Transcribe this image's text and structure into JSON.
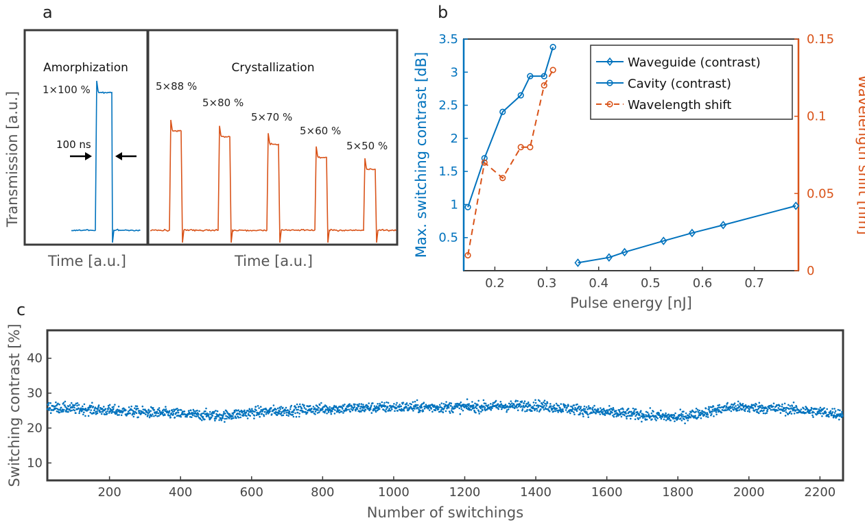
{
  "panels": {
    "a": {
      "label": "a",
      "left_title": "Amorphization",
      "right_title": "Crystallization",
      "ylabel": "Transmission [a.u.]",
      "xlabel_left": "Time [a.u.]",
      "xlabel_right": "Time [a.u.]",
      "pulse_annotation": "100 ns"
    },
    "b": {
      "label": "b"
    },
    "c": {
      "label": "c"
    }
  },
  "colors": {
    "blue": "#0072BD",
    "orange": "#D95319",
    "axis": "#3a3a3a",
    "text": "#222222"
  },
  "chart_data": [
    {
      "id": "a",
      "type": "line",
      "title": "",
      "ylabel": "Transmission [a.u.]",
      "xlabel": "Time [a.u.]",
      "series": [
        {
          "name": "Amorphization",
          "color": "#0072BD",
          "pulses": [
            {
              "label": "1×100 %",
              "level": 1.0
            }
          ]
        },
        {
          "name": "Crystallization",
          "color": "#D95319",
          "pulses": [
            {
              "label": "5×88 %",
              "level": 0.73
            },
            {
              "label": "5×80 %",
              "level": 0.69
            },
            {
              "label": "5×70 %",
              "level": 0.64
            },
            {
              "label": "5×60 %",
              "level": 0.55
            },
            {
              "label": "5×50 %",
              "level": 0.47
            }
          ]
        }
      ]
    },
    {
      "id": "b",
      "type": "line",
      "xlabel": "Pulse energy [nJ]",
      "ylabel_left": "Max. switching contrast [dB]",
      "ylabel_right": "Wavelength shift [nm]",
      "xlim": [
        0.14,
        0.785
      ],
      "ylim_left": [
        0,
        3.5
      ],
      "ylim_right": [
        0,
        0.15
      ],
      "xticks": [
        0.2,
        0.3,
        0.4,
        0.5,
        0.6,
        0.7
      ],
      "yticks_left": [
        0.5,
        1,
        1.5,
        2,
        2.5,
        3,
        3.5
      ],
      "yticks_right": [
        0,
        0.05,
        0.1,
        0.15
      ],
      "legend_position": "top-right",
      "series": [
        {
          "name": "Waveguide (contrast)",
          "axis": "left",
          "color": "#0072BD",
          "marker": "diamond",
          "dash": false,
          "x": [
            0.36,
            0.42,
            0.45,
            0.525,
            0.58,
            0.64,
            0.78
          ],
          "y": [
            0.12,
            0.2,
            0.28,
            0.45,
            0.57,
            0.69,
            0.98
          ]
        },
        {
          "name": "Cavity (contrast)",
          "axis": "left",
          "color": "#0072BD",
          "marker": "circle",
          "dash": false,
          "x": [
            0.148,
            0.18,
            0.215,
            0.25,
            0.268,
            0.295,
            0.312
          ],
          "y": [
            0.96,
            1.7,
            2.4,
            2.65,
            2.94,
            2.94,
            3.38
          ]
        },
        {
          "name": "Wavelength shift",
          "axis": "right",
          "color": "#D95319",
          "marker": "circle-open",
          "dash": true,
          "x": [
            0.148,
            0.18,
            0.215,
            0.25,
            0.268,
            0.295,
            0.312
          ],
          "y": [
            0.01,
            0.07,
            0.06,
            0.08,
            0.08,
            0.12,
            0.13
          ]
        }
      ]
    },
    {
      "id": "c",
      "type": "scatter",
      "xlabel": "Number of switchings",
      "ylabel": "Switching contrast [%]",
      "xlim": [
        25,
        2265
      ],
      "ylim": [
        5,
        48
      ],
      "xticks": [
        200,
        400,
        600,
        800,
        1000,
        1200,
        1400,
        1600,
        1800,
        2000,
        2200
      ],
      "yticks": [
        10,
        20,
        30,
        40
      ],
      "color": "#0072BD",
      "point_count": 2240,
      "trend": [
        {
          "x": 25,
          "y": 26.0
        },
        {
          "x": 200,
          "y": 25.0
        },
        {
          "x": 400,
          "y": 24.0
        },
        {
          "x": 520,
          "y": 23.5
        },
        {
          "x": 600,
          "y": 24.5
        },
        {
          "x": 800,
          "y": 25.5
        },
        {
          "x": 1000,
          "y": 26.0
        },
        {
          "x": 1200,
          "y": 26.0
        },
        {
          "x": 1400,
          "y": 26.5
        },
        {
          "x": 1600,
          "y": 24.5
        },
        {
          "x": 1800,
          "y": 23.0
        },
        {
          "x": 1950,
          "y": 26.0
        },
        {
          "x": 2100,
          "y": 25.5
        },
        {
          "x": 2265,
          "y": 24.0
        }
      ],
      "spread": 1.1
    }
  ]
}
